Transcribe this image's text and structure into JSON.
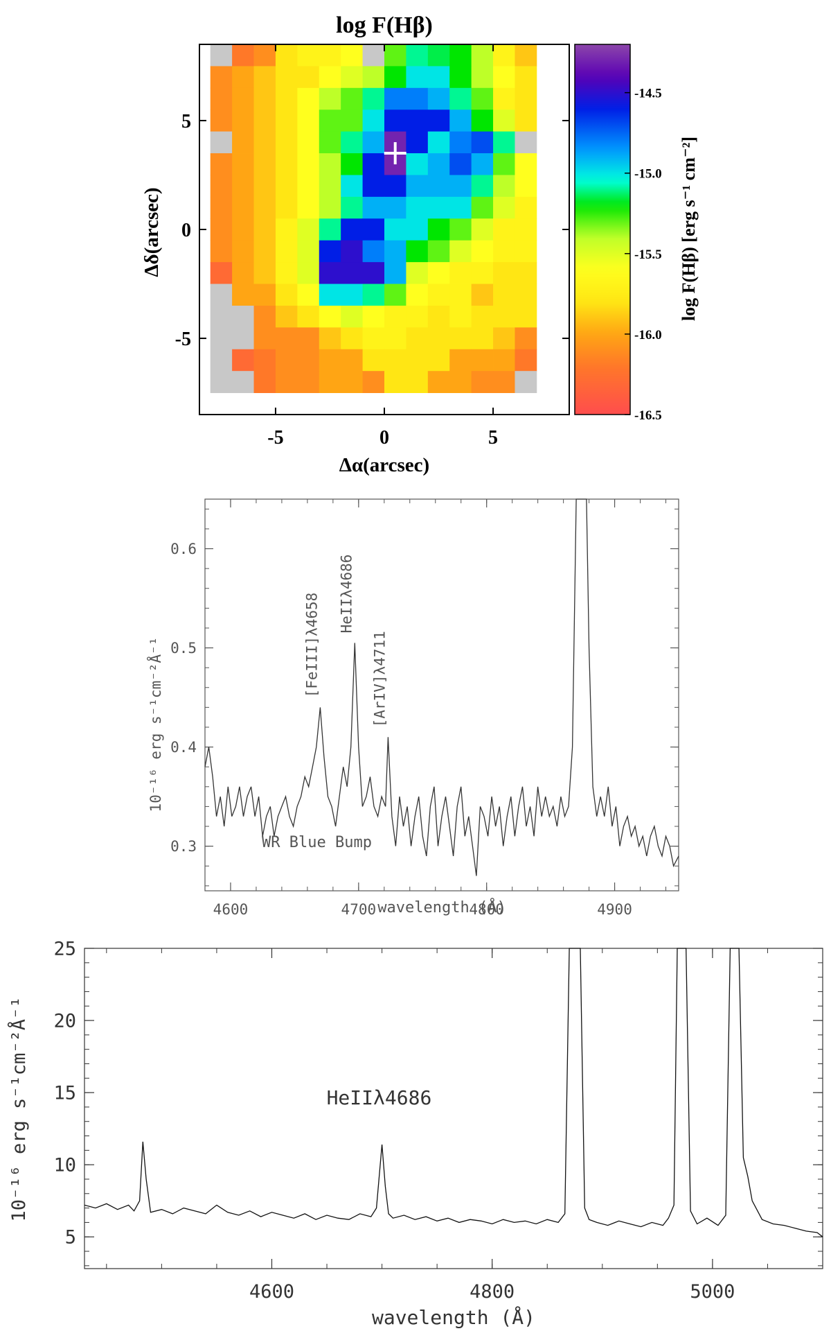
{
  "panels": {
    "map": {
      "title": "log F(Hβ)",
      "colorbar_label": "log F(Hβ) [erg s⁻¹ cm⁻²]"
    },
    "spec1": {
      "annotation": "WR Blue Bump",
      "line_labels": [
        "[FeIII]λ4658",
        "HeIIλ4686",
        "[ArIV]λ4711"
      ]
    },
    "spec2": {
      "line_labels": [
        "HeIIλ4686"
      ]
    }
  },
  "chart_data": [
    {
      "type": "heatmap",
      "title": "log F(Hβ)",
      "xlabel": "Δα(arcsec)",
      "ylabel": "Δδ(arcsec)",
      "xlim": [
        -8.5,
        8.5
      ],
      "ylim": [
        -8.5,
        8.5
      ],
      "x_ticks": [
        -5,
        0,
        5
      ],
      "y_ticks": [
        5,
        0,
        -5
      ],
      "marker": {
        "label": "+",
        "x": 0.5,
        "y": 3.5
      },
      "colorbar": {
        "label": "log F(Hβ) [erg s⁻¹ cm⁻²]",
        "range": [
          -16.5,
          -14.2
        ],
        "ticks": [
          -14.5,
          -15.0,
          -15.5,
          -16.0,
          -16.5
        ],
        "tick_labels": [
          "-14.5",
          "-15.0",
          "-15.5",
          "-16.0",
          "-16.5"
        ]
      },
      "grid_rows_top_to_bottom": [
        [
          null,
          -16.2,
          -16.1,
          -15.8,
          -15.7,
          -15.7,
          -15.6,
          null,
          -15.3,
          -15.1,
          -15.15,
          -15.2,
          -15.4,
          -15.7,
          -15.9
        ],
        [
          -16.1,
          -16.0,
          -15.9,
          -15.8,
          -15.8,
          -15.6,
          -15.5,
          -15.4,
          -15.2,
          -15.0,
          -15.0,
          -15.2,
          -15.4,
          -15.6,
          -15.8
        ],
        [
          -16.1,
          -16.0,
          -15.9,
          -15.8,
          -15.6,
          -15.4,
          -15.3,
          -15.1,
          -14.8,
          -14.8,
          -14.9,
          -15.1,
          -15.3,
          -15.7,
          -15.8
        ],
        [
          -16.1,
          -16.0,
          -15.9,
          -15.8,
          -15.6,
          -15.3,
          -15.3,
          -15.0,
          -14.6,
          -14.6,
          -14.6,
          -14.9,
          -15.2,
          -15.5,
          -15.8
        ],
        [
          null,
          -16.0,
          -15.9,
          -15.8,
          -15.6,
          -15.3,
          -15.1,
          -14.9,
          -14.3,
          -14.6,
          -15.0,
          -14.8,
          -14.7,
          -15.1,
          null
        ],
        [
          -16.1,
          -16.0,
          -15.9,
          -15.8,
          -15.6,
          -15.4,
          -15.2,
          -14.6,
          -14.3,
          -15.0,
          -14.9,
          -14.7,
          -14.9,
          -15.3,
          -15.6
        ],
        [
          -16.1,
          -16.0,
          -15.9,
          -15.8,
          -15.6,
          -15.4,
          -15.0,
          -14.6,
          -14.6,
          -14.9,
          -14.9,
          -14.9,
          -15.1,
          -15.4,
          -15.6
        ],
        [
          -16.1,
          -16.0,
          -15.9,
          -15.8,
          -15.6,
          -15.4,
          -15.1,
          -14.9,
          -14.9,
          -15.0,
          -15.0,
          -15.0,
          -15.3,
          -15.5,
          -15.7
        ],
        [
          -16.1,
          -16.0,
          -15.9,
          -15.7,
          -15.5,
          -15.1,
          -14.6,
          -14.6,
          -15.0,
          -15.0,
          -15.2,
          -15.3,
          -15.5,
          -15.7,
          -15.7
        ],
        [
          -16.1,
          -16.0,
          -15.9,
          -15.7,
          -15.5,
          -14.6,
          -14.5,
          -14.8,
          -14.9,
          -15.2,
          -15.3,
          -15.5,
          -15.6,
          -15.7,
          -15.7
        ],
        [
          -16.3,
          -16.0,
          -15.9,
          -15.7,
          -15.5,
          -14.5,
          -14.5,
          -14.5,
          -14.9,
          -15.5,
          -15.6,
          -15.7,
          -15.7,
          -15.8,
          -15.8
        ],
        [
          null,
          -16.0,
          -16.0,
          -15.8,
          -15.6,
          -15.0,
          -15.0,
          -15.1,
          -15.3,
          -15.6,
          -15.7,
          -15.7,
          -15.9,
          -15.8,
          -15.8
        ],
        [
          null,
          null,
          -16.1,
          -15.9,
          -15.8,
          -15.6,
          -15.5,
          -15.6,
          -15.7,
          -15.7,
          -15.8,
          -15.7,
          -15.8,
          -15.8,
          -15.8
        ],
        [
          null,
          null,
          -16.1,
          -16.1,
          -16.1,
          -15.9,
          -15.8,
          -15.7,
          -15.7,
          -15.8,
          -15.8,
          -15.8,
          -15.8,
          -15.9,
          -16.1
        ],
        [
          null,
          -16.3,
          -16.2,
          -16.1,
          -16.1,
          -16.0,
          -16.0,
          -15.8,
          -15.8,
          -15.8,
          -15.8,
          -16.0,
          -16.0,
          -16.0,
          -16.2
        ],
        [
          null,
          null,
          -16.2,
          -16.1,
          -16.1,
          -16.0,
          -16.0,
          -16.1,
          -15.8,
          -15.8,
          -16.0,
          -16.0,
          -16.1,
          -16.1,
          null
        ]
      ]
    },
    {
      "type": "line",
      "xlabel": "wavelength (Å)",
      "ylabel": "10⁻¹⁶ erg s⁻¹cm⁻²Å⁻¹",
      "xlim": [
        4580,
        4950
      ],
      "ylim": [
        0.255,
        0.65
      ],
      "x_ticks": [
        4600,
        4700,
        4800,
        4900
      ],
      "x_tick_labels": [
        "4600",
        "4700",
        "4800",
        "4900"
      ],
      "y_ticks": [
        0.3,
        0.4,
        0.5,
        0.6
      ],
      "y_tick_labels": [
        "0.3",
        "0.4",
        "0.5",
        "0.6"
      ],
      "lines": [
        {
          "label": "[FeIII]λ4658",
          "x": 4670,
          "peak": 0.44
        },
        {
          "label": "HeIIλ4686",
          "x": 4697,
          "peak": 0.505
        },
        {
          "label": "[ArIV]λ4711",
          "x": 4723,
          "peak": 0.41
        }
      ],
      "annotation": "WR Blue Bump",
      "series": [
        {
          "name": "spectrum",
          "x": [
            4580,
            4583,
            4586,
            4589,
            4592,
            4595,
            4598,
            4601,
            4604,
            4607,
            4610,
            4613,
            4616,
            4619,
            4622,
            4625,
            4628,
            4631,
            4634,
            4637,
            4640,
            4643,
            4646,
            4649,
            4652,
            4655,
            4658,
            4661,
            4664,
            4667,
            4670,
            4673,
            4676,
            4679,
            4682,
            4685,
            4688,
            4691,
            4694,
            4697,
            4700,
            4703,
            4706,
            4709,
            4712,
            4715,
            4718,
            4721,
            4723,
            4726,
            4729,
            4732,
            4735,
            4738,
            4741,
            4744,
            4747,
            4750,
            4753,
            4756,
            4759,
            4762,
            4765,
            4768,
            4771,
            4774,
            4777,
            4780,
            4783,
            4786,
            4789,
            4792,
            4795,
            4798,
            4801,
            4804,
            4807,
            4810,
            4813,
            4816,
            4819,
            4822,
            4825,
            4828,
            4831,
            4834,
            4837,
            4840,
            4843,
            4846,
            4849,
            4852,
            4855,
            4858,
            4861,
            4864,
            4867,
            4870,
            4872,
            4874,
            4876,
            4878,
            4880,
            4883,
            4886,
            4889,
            4892,
            4895,
            4898,
            4901,
            4904,
            4907,
            4910,
            4913,
            4916,
            4919,
            4922,
            4925,
            4928,
            4931,
            4934,
            4937,
            4940,
            4943,
            4946,
            4950
          ],
          "y": [
            0.38,
            0.4,
            0.37,
            0.33,
            0.35,
            0.32,
            0.36,
            0.33,
            0.34,
            0.36,
            0.33,
            0.35,
            0.36,
            0.33,
            0.35,
            0.31,
            0.33,
            0.34,
            0.31,
            0.33,
            0.34,
            0.35,
            0.33,
            0.32,
            0.34,
            0.35,
            0.37,
            0.36,
            0.38,
            0.4,
            0.44,
            0.39,
            0.35,
            0.34,
            0.32,
            0.35,
            0.38,
            0.36,
            0.4,
            0.505,
            0.4,
            0.34,
            0.35,
            0.37,
            0.34,
            0.33,
            0.35,
            0.34,
            0.41,
            0.33,
            0.3,
            0.35,
            0.32,
            0.34,
            0.3,
            0.33,
            0.35,
            0.31,
            0.29,
            0.34,
            0.36,
            0.3,
            0.33,
            0.35,
            0.32,
            0.29,
            0.34,
            0.36,
            0.31,
            0.33,
            0.3,
            0.27,
            0.34,
            0.33,
            0.31,
            0.35,
            0.32,
            0.34,
            0.3,
            0.33,
            0.35,
            0.31,
            0.34,
            0.36,
            0.32,
            0.34,
            0.31,
            0.36,
            0.33,
            0.35,
            0.33,
            0.34,
            0.32,
            0.35,
            0.33,
            0.34,
            0.4,
            0.65,
            0.65,
            0.65,
            0.65,
            0.65,
            0.5,
            0.36,
            0.33,
            0.35,
            0.33,
            0.36,
            0.32,
            0.34,
            0.3,
            0.32,
            0.33,
            0.31,
            0.32,
            0.3,
            0.31,
            0.29,
            0.31,
            0.32,
            0.3,
            0.29,
            0.31,
            0.3,
            0.28,
            0.29
          ]
        }
      ]
    },
    {
      "type": "line",
      "xlabel": "wavelength (Å)",
      "ylabel": "10⁻¹⁶ erg s⁻¹cm⁻²Å⁻¹",
      "xlim": [
        4430,
        5100
      ],
      "ylim": [
        2.8,
        25
      ],
      "x_ticks": [
        4600,
        4800,
        5000
      ],
      "x_tick_labels": [
        "4600",
        "4800",
        "5000"
      ],
      "y_ticks": [
        5,
        10,
        15,
        20,
        25
      ],
      "y_tick_labels": [
        "5",
        "10",
        "15",
        "20",
        "25"
      ],
      "lines": [
        {
          "label": "HeIIλ4686",
          "x": 4700,
          "peak": 11.4
        }
      ],
      "series": [
        {
          "name": "spectrum",
          "x": [
            4430,
            4440,
            4450,
            4460,
            4470,
            4475,
            4480,
            4483,
            4486,
            4490,
            4500,
            4510,
            4520,
            4530,
            4540,
            4550,
            4560,
            4570,
            4580,
            4590,
            4600,
            4610,
            4620,
            4630,
            4640,
            4650,
            4660,
            4670,
            4680,
            4690,
            4695,
            4700,
            4703,
            4706,
            4710,
            4720,
            4730,
            4740,
            4750,
            4760,
            4770,
            4780,
            4790,
            4800,
            4810,
            4820,
            4830,
            4840,
            4850,
            4860,
            4866,
            4870,
            4875,
            4880,
            4884,
            4888,
            4895,
            4905,
            4915,
            4925,
            4935,
            4945,
            4955,
            4960,
            4965,
            4968,
            4972,
            4976,
            4980,
            4986,
            4995,
            5005,
            5012,
            5016,
            5020,
            5024,
            5028,
            5032,
            5036,
            5045,
            5055,
            5065,
            5075,
            5085,
            5095,
            5100
          ],
          "y": [
            7.2,
            7.0,
            7.3,
            6.9,
            7.2,
            6.8,
            7.5,
            11.6,
            9.0,
            6.7,
            6.9,
            6.6,
            7.0,
            6.8,
            6.6,
            7.2,
            6.7,
            6.5,
            6.8,
            6.4,
            6.7,
            6.5,
            6.3,
            6.6,
            6.2,
            6.5,
            6.3,
            6.2,
            6.6,
            6.4,
            7.0,
            11.4,
            8.5,
            6.6,
            6.3,
            6.5,
            6.2,
            6.4,
            6.1,
            6.3,
            6.0,
            6.2,
            6.1,
            5.9,
            6.2,
            6.0,
            6.1,
            5.9,
            6.2,
            6.0,
            6.6,
            25,
            25,
            25,
            7.0,
            6.2,
            6.0,
            5.8,
            6.1,
            5.9,
            5.7,
            6.0,
            5.8,
            6.3,
            7.2,
            25,
            25,
            25,
            6.8,
            5.9,
            6.3,
            5.8,
            6.5,
            25,
            25,
            25,
            10.5,
            9.2,
            7.5,
            6.2,
            5.9,
            5.8,
            5.6,
            5.4,
            5.3,
            5.0
          ]
        }
      ]
    }
  ]
}
